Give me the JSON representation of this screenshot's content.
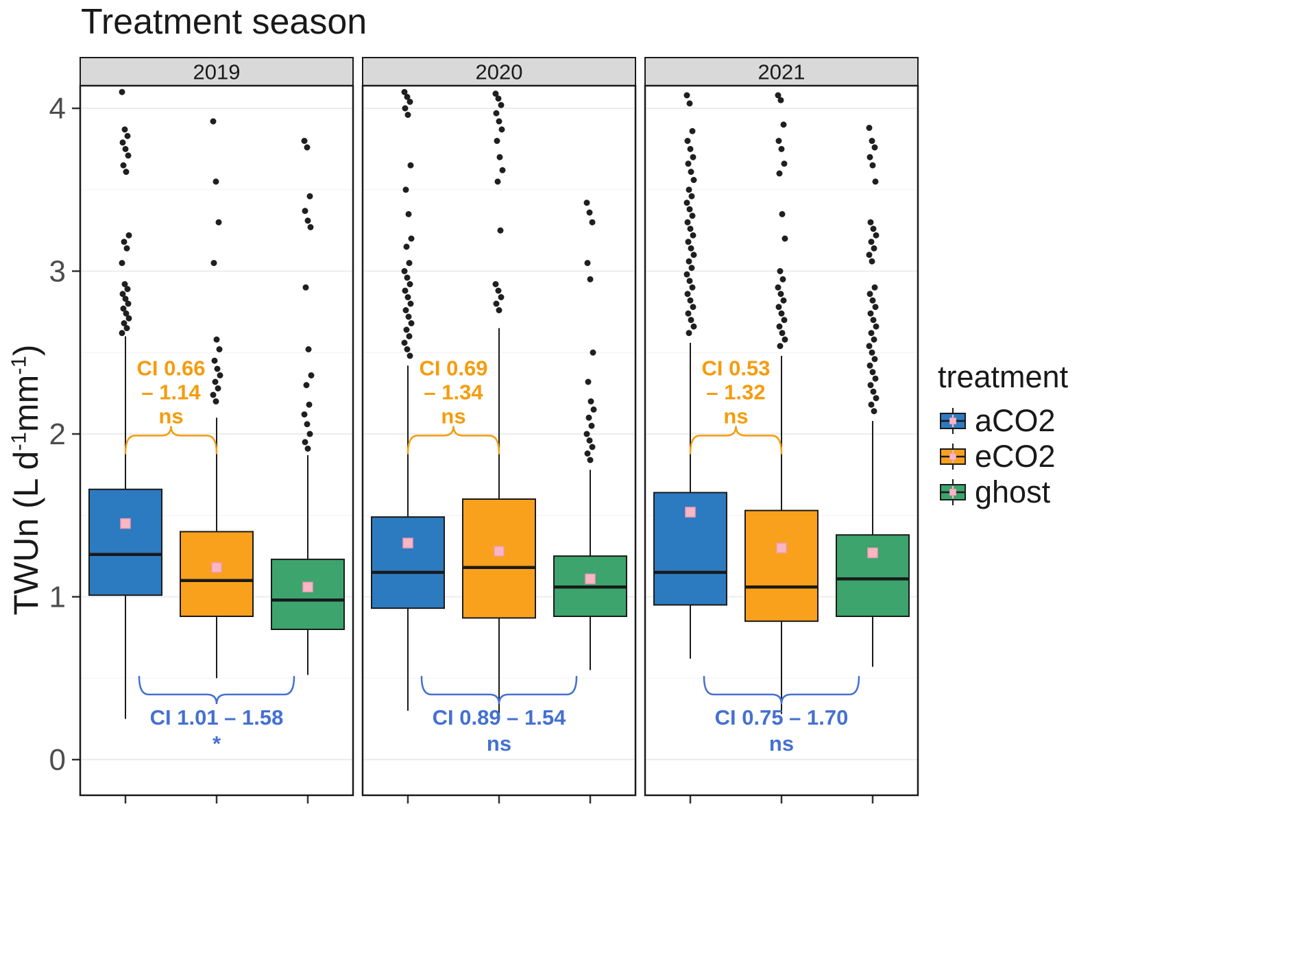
{
  "chart_data": {
    "type": "boxplot",
    "title": "Treatment season",
    "ylabel": "TWUn (L d-1mm-1)",
    "ylabel_parts": [
      "TWUn (L d",
      "-1",
      "mm",
      "-1",
      ")"
    ],
    "ylim": [
      -0.22,
      4.14
    ],
    "yticks": [
      0,
      1,
      2,
      3,
      4
    ],
    "grid": "major-and-minor",
    "facet_labels": [
      "2019",
      "2020",
      "2021"
    ],
    "groups": [
      "aCO2",
      "eCO2",
      "ghost"
    ],
    "colors": {
      "aCO2": "#2c7bc0",
      "eCO2": "#f9a11c",
      "ghost": "#3ca46c",
      "mean_marker": "#f9b7c6",
      "mean_marker_border": "#ef9ab2",
      "annotation_orange": "#f59c0e",
      "annotation_blue": "#4470d2",
      "strip_bg": "#d9d9d9",
      "panel_border": "#1a1a1a",
      "grid_major": "#ececec",
      "grid_minor": "#f6f6f6",
      "outlier": "#1f1f1f",
      "axis_text": "#4d4d4d"
    },
    "facets": [
      {
        "label": "2019",
        "boxes": [
          {
            "treatment": "aCO2",
            "whisker_low": 0.25,
            "q1": 1.01,
            "median": 1.26,
            "q3": 1.66,
            "whisker_high": 2.6,
            "mean": 1.45,
            "outliers": [
              4.1,
              3.87,
              3.83,
              3.79,
              3.75,
              3.71,
              3.65,
              3.61,
              3.22,
              3.18,
              3.14,
              3.05,
              2.92,
              2.89,
              2.86,
              2.83,
              2.8,
              2.77,
              2.74,
              2.71,
              2.68,
              2.65,
              2.62
            ]
          },
          {
            "treatment": "eCO2",
            "whisker_low": 0.5,
            "q1": 0.88,
            "median": 1.1,
            "q3": 1.4,
            "whisker_high": 2.1,
            "mean": 1.18,
            "outliers": [
              3.92,
              3.55,
              3.3,
              3.05,
              2.58,
              2.52,
              2.45,
              2.4,
              2.36,
              2.32,
              2.28,
              2.24,
              2.2
            ]
          },
          {
            "treatment": "ghost",
            "whisker_low": 0.52,
            "q1": 0.8,
            "median": 0.98,
            "q3": 1.23,
            "whisker_high": 1.87,
            "mean": 1.06,
            "outliers": [
              3.8,
              3.76,
              3.46,
              3.37,
              3.31,
              3.27,
              2.9,
              2.52,
              2.36,
              2.3,
              2.18,
              2.12,
              2.06,
              2.0,
              1.95,
              1.91
            ]
          }
        ],
        "top_bracket": {
          "from": 0,
          "to": 1,
          "y": 1.99,
          "lines": [
            "CI 0.66",
            "– 1.14",
            "ns"
          ]
        },
        "bottom_bracket": {
          "from": 0,
          "to": 2,
          "notch": 1,
          "y": 0.4,
          "lines": [
            "CI 1.01 – 1.58",
            "*"
          ]
        }
      },
      {
        "label": "2020",
        "boxes": [
          {
            "treatment": "aCO2",
            "whisker_low": 0.3,
            "q1": 0.93,
            "median": 1.15,
            "q3": 1.49,
            "whisker_high": 2.42,
            "mean": 1.33,
            "outliers": [
              4.1,
              4.07,
              4.04,
              4.0,
              3.96,
              3.65,
              3.5,
              3.35,
              3.2,
              3.15,
              3.05,
              3.0,
              2.96,
              2.92,
              2.88,
              2.84,
              2.8,
              2.76,
              2.72,
              2.68,
              2.64,
              2.6,
              2.56,
              2.52,
              2.48
            ]
          },
          {
            "treatment": "eCO2",
            "whisker_low": 0.28,
            "q1": 0.87,
            "median": 1.18,
            "q3": 1.6,
            "whisker_high": 2.65,
            "mean": 1.28,
            "outliers": [
              4.09,
              4.06,
              4.02,
              3.97,
              3.92,
              3.87,
              3.8,
              3.7,
              3.62,
              3.55,
              3.25,
              2.92,
              2.88,
              2.84,
              2.8,
              2.76
            ]
          },
          {
            "treatment": "ghost",
            "whisker_low": 0.55,
            "q1": 0.88,
            "median": 1.06,
            "q3": 1.25,
            "whisker_high": 1.78,
            "mean": 1.11,
            "outliers": [
              3.42,
              3.36,
              3.3,
              3.05,
              2.95,
              2.5,
              2.32,
              2.2,
              2.15,
              2.1,
              2.05,
              2.0,
              1.96,
              1.92,
              1.88,
              1.84
            ]
          }
        ],
        "top_bracket": {
          "from": 0,
          "to": 1,
          "y": 1.99,
          "lines": [
            "CI 0.69",
            "– 1.34",
            "ns"
          ]
        },
        "bottom_bracket": {
          "from": 0,
          "to": 2,
          "notch": 1,
          "y": 0.4,
          "lines": [
            "CI  0.89 – 1.54",
            "ns"
          ]
        }
      },
      {
        "label": "2021",
        "boxes": [
          {
            "treatment": "aCO2",
            "whisker_low": 0.62,
            "q1": 0.95,
            "median": 1.15,
            "q3": 1.64,
            "whisker_high": 2.56,
            "mean": 1.52,
            "outliers": [
              4.08,
              4.03,
              3.86,
              3.8,
              3.75,
              3.7,
              3.66,
              3.61,
              3.56,
              3.5,
              3.46,
              3.42,
              3.38,
              3.34,
              3.3,
              3.26,
              3.22,
              3.18,
              3.14,
              3.1,
              3.06,
              3.02,
              2.98,
              2.94,
              2.9,
              2.86,
              2.82,
              2.78,
              2.74,
              2.7,
              2.66,
              2.62
            ]
          },
          {
            "treatment": "eCO2",
            "whisker_low": 0.28,
            "q1": 0.85,
            "median": 1.06,
            "q3": 1.53,
            "whisker_high": 2.48,
            "mean": 1.3,
            "outliers": [
              4.08,
              4.05,
              3.9,
              3.8,
              3.75,
              3.66,
              3.6,
              3.35,
              3.2,
              3.0,
              2.95,
              2.9,
              2.86,
              2.82,
              2.78,
              2.74,
              2.7,
              2.66,
              2.62,
              2.58,
              2.54
            ]
          },
          {
            "treatment": "ghost",
            "whisker_low": 0.57,
            "q1": 0.88,
            "median": 1.11,
            "q3": 1.38,
            "whisker_high": 2.08,
            "mean": 1.27,
            "outliers": [
              3.88,
              3.8,
              3.76,
              3.7,
              3.65,
              3.55,
              3.3,
              3.26,
              3.22,
              3.18,
              3.14,
              3.1,
              3.06,
              2.9,
              2.86,
              2.82,
              2.78,
              2.74,
              2.7,
              2.66,
              2.62,
              2.58,
              2.54,
              2.5,
              2.46,
              2.42,
              2.38,
              2.34,
              2.3,
              2.26,
              2.22,
              2.18,
              2.14
            ]
          }
        ],
        "top_bracket": {
          "from": 0,
          "to": 1,
          "y": 1.99,
          "lines": [
            "CI 0.53",
            "– 1.32",
            "ns"
          ]
        },
        "bottom_bracket": {
          "from": 0,
          "to": 2,
          "notch": 1,
          "y": 0.4,
          "lines": [
            "CI  0.75 – 1.70",
            "ns"
          ]
        }
      }
    ],
    "legend": {
      "title": "treatment",
      "entries": [
        {
          "label": "aCO2",
          "color": "#2c7bc0"
        },
        {
          "label": "eCO2",
          "color": "#f9a11c"
        },
        {
          "label": "ghost",
          "color": "#3ca46c"
        }
      ]
    }
  }
}
